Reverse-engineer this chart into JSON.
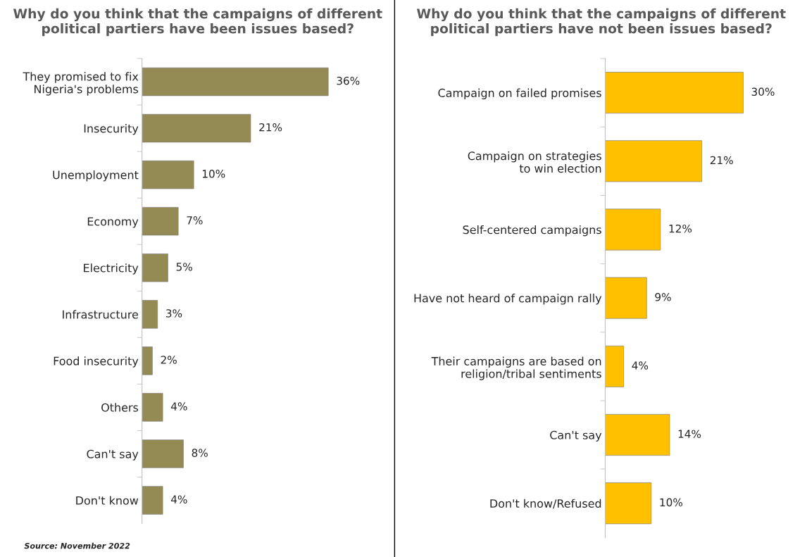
{
  "chart_data": [
    {
      "type": "bar",
      "orientation": "horizontal",
      "title": "Why do you think that the campaigns of different political partiers have been issues based?",
      "categories": [
        "They promised to fix Nigeria's problems",
        "Insecurity",
        "Unemployment",
        "Economy",
        "Electricity",
        "Infrastructure",
        "Food insecurity",
        "Others",
        "Can't say",
        "Don't know"
      ],
      "values": [
        36,
        21,
        10,
        7,
        5,
        3,
        2,
        4,
        8,
        4
      ],
      "value_labels": [
        "36%",
        "21%",
        "10%",
        "7%",
        "5%",
        "3%",
        "2%",
        "4%",
        "8%",
        "4%"
      ],
      "color": "#948a54",
      "annotations": [
        "Source: November 2022"
      ]
    },
    {
      "type": "bar",
      "orientation": "horizontal",
      "title": "Why do you think that the campaigns of different political partiers have not been issues based?",
      "categories": [
        "Campaign on failed promises",
        "Campaign on strategies to win election",
        "Self-centered campaigns",
        "Have not heard of campaign rally",
        "Their campaigns are based on religion/tribal sentiments",
        "Can't say",
        "Don't know/Refused"
      ],
      "values": [
        30,
        21,
        12,
        9,
        4,
        14,
        10
      ],
      "value_labels": [
        "30%",
        "21%",
        "12%",
        "9%",
        "4%",
        "14%",
        "10%"
      ],
      "color": "#ffc000"
    }
  ]
}
